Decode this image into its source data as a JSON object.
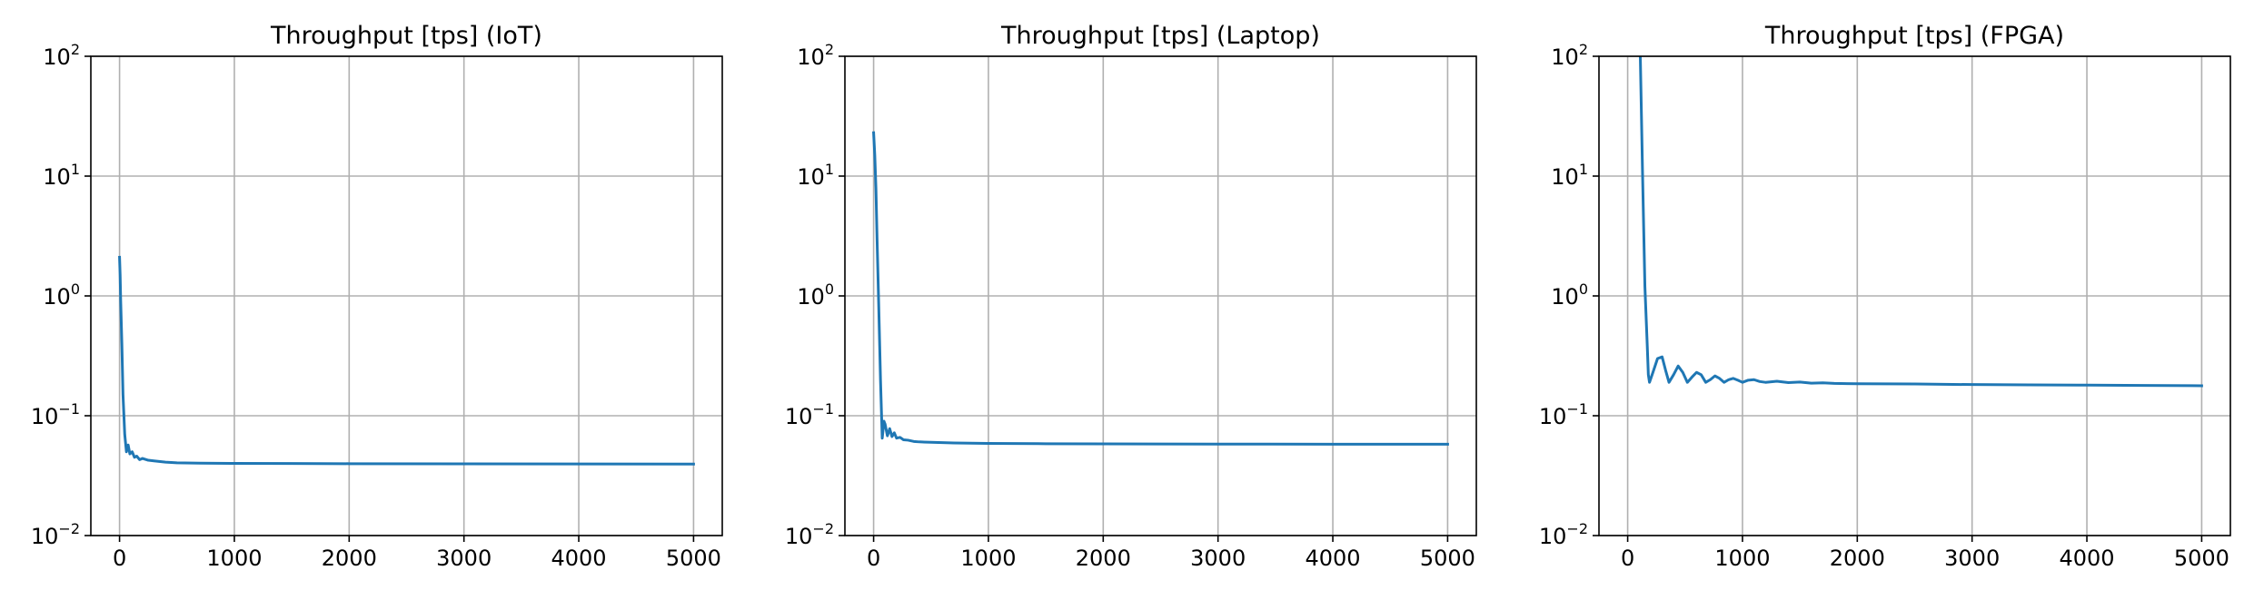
{
  "chart_data": [
    {
      "type": "line",
      "title": "Throughput [tps] (IoT)",
      "xlabel": "",
      "ylabel": "",
      "xlim": [
        -250,
        5250
      ],
      "ylim": [
        0.01,
        100
      ],
      "yscale": "log",
      "grid": true,
      "color": "#1f77b4",
      "x_ticks": [
        0,
        1000,
        2000,
        3000,
        4000,
        5000
      ],
      "x_tick_labels": [
        "0",
        "1000",
        "2000",
        "3000",
        "4000",
        "5000"
      ],
      "y_ticks": [
        0.01,
        0.1,
        1,
        10,
        100
      ],
      "y_tick_labels": [
        {
          "base": "10",
          "exp": "−2"
        },
        {
          "base": "10",
          "exp": "−1"
        },
        {
          "base": "10",
          "exp": "0"
        },
        {
          "base": "10",
          "exp": "1"
        },
        {
          "base": "10",
          "exp": "2"
        }
      ],
      "series": [
        {
          "x": [
            0,
            5,
            10,
            20,
            30,
            45,
            60,
            75,
            90,
            110,
            130,
            150,
            175,
            200,
            250,
            300,
            400,
            500,
            700,
            1000,
            1500,
            2000,
            3000,
            4000,
            5000
          ],
          "values": [
            2.1,
            1.5,
            0.9,
            0.4,
            0.15,
            0.07,
            0.05,
            0.057,
            0.048,
            0.05,
            0.045,
            0.046,
            0.043,
            0.044,
            0.0425,
            0.042,
            0.041,
            0.0405,
            0.0402,
            0.04,
            0.0399,
            0.0398,
            0.0397,
            0.0396,
            0.0395
          ]
        }
      ]
    },
    {
      "type": "line",
      "title": "Throughput [tps] (Laptop)",
      "xlabel": "",
      "ylabel": "",
      "xlim": [
        -250,
        5250
      ],
      "ylim": [
        0.01,
        100
      ],
      "yscale": "log",
      "grid": true,
      "color": "#1f77b4",
      "x_ticks": [
        0,
        1000,
        2000,
        3000,
        4000,
        5000
      ],
      "x_tick_labels": [
        "0",
        "1000",
        "2000",
        "3000",
        "4000",
        "5000"
      ],
      "y_ticks": [
        0.01,
        0.1,
        1,
        10,
        100
      ],
      "y_tick_labels": [
        {
          "base": "10",
          "exp": "−2"
        },
        {
          "base": "10",
          "exp": "−1"
        },
        {
          "base": "10",
          "exp": "0"
        },
        {
          "base": "10",
          "exp": "1"
        },
        {
          "base": "10",
          "exp": "2"
        }
      ],
      "series": [
        {
          "x": [
            0,
            10,
            20,
            30,
            45,
            60,
            75,
            90,
            100,
            120,
            140,
            160,
            180,
            200,
            230,
            260,
            300,
            350,
            400,
            500,
            700,
            1000,
            1500,
            2000,
            3000,
            4000,
            5000
          ],
          "values": [
            23,
            15,
            8,
            3,
            0.8,
            0.2,
            0.065,
            0.09,
            0.085,
            0.068,
            0.078,
            0.067,
            0.072,
            0.065,
            0.066,
            0.063,
            0.0625,
            0.061,
            0.0605,
            0.06,
            0.0592,
            0.0588,
            0.0584,
            0.0582,
            0.058,
            0.0579,
            0.0578
          ]
        }
      ]
    },
    {
      "type": "line",
      "title": "Throughput [tps] (FPGA)",
      "xlabel": "",
      "ylabel": "",
      "xlim": [
        -250,
        5250
      ],
      "ylim": [
        0.01,
        100
      ],
      "yscale": "log",
      "grid": true,
      "color": "#1f77b4",
      "x_ticks": [
        0,
        1000,
        2000,
        3000,
        4000,
        5000
      ],
      "x_tick_labels": [
        "0",
        "1000",
        "2000",
        "3000",
        "4000",
        "5000"
      ],
      "y_ticks": [
        0.01,
        0.1,
        1,
        10,
        100
      ],
      "y_tick_labels": [
        {
          "base": "10",
          "exp": "−2"
        },
        {
          "base": "10",
          "exp": "−1"
        },
        {
          "base": "10",
          "exp": "0"
        },
        {
          "base": "10",
          "exp": "1"
        },
        {
          "base": "10",
          "exp": "2"
        }
      ],
      "series": [
        {
          "x": [
            110,
            130,
            150,
            170,
            180,
            190,
            220,
            260,
            300,
            330,
            360,
            400,
            440,
            480,
            520,
            560,
            600,
            640,
            680,
            720,
            760,
            800,
            840,
            880,
            920,
            960,
            1000,
            1050,
            1100,
            1150,
            1200,
            1300,
            1400,
            1500,
            1600,
            1700,
            1800,
            2000,
            2500,
            3000,
            3500,
            4000,
            4500,
            5000
          ],
          "values": [
            100,
            10,
            1.2,
            0.4,
            0.22,
            0.19,
            0.23,
            0.3,
            0.31,
            0.24,
            0.19,
            0.22,
            0.26,
            0.23,
            0.19,
            0.21,
            0.23,
            0.22,
            0.19,
            0.2,
            0.215,
            0.205,
            0.19,
            0.2,
            0.205,
            0.198,
            0.19,
            0.198,
            0.2,
            0.193,
            0.19,
            0.194,
            0.189,
            0.191,
            0.187,
            0.188,
            0.186,
            0.185,
            0.184,
            0.182,
            0.181,
            0.18,
            0.179,
            0.178
          ]
        }
      ]
    }
  ]
}
